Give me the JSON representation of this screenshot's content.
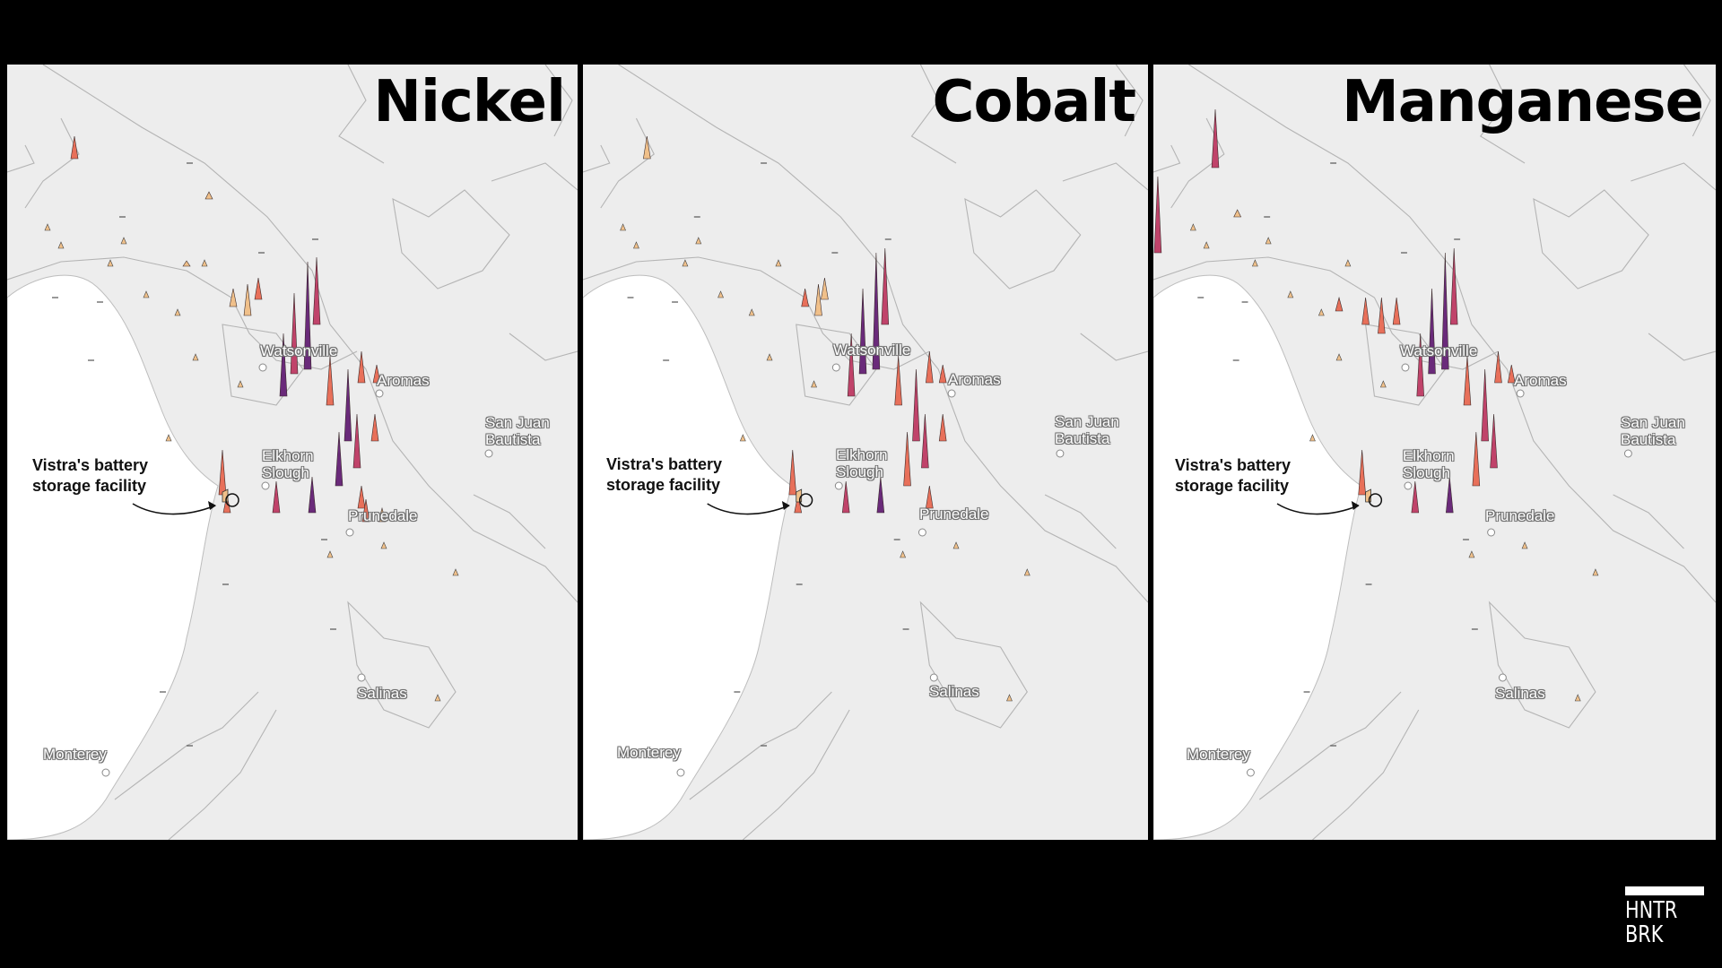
{
  "panels": [
    {
      "metal": "Nickel",
      "annotation": "Vistra's battery storage facility",
      "places": [
        "Watsonville",
        "Aromas",
        "San Juan Bautista",
        "Elkhorn Slough",
        "Prunedale",
        "Salinas",
        "Monterey"
      ]
    },
    {
      "metal": "Cobalt",
      "annotation": "Vistra's battery storage facility",
      "places": [
        "Watsonville",
        "Aromas",
        "San Juan Bautista",
        "Elkhorn Slough",
        "Prunedale",
        "Salinas",
        "Monterey"
      ]
    },
    {
      "metal": "Manganese",
      "annotation": "Vistra's battery storage facility",
      "places": [
        "Watsonville",
        "Aromas",
        "San Juan Bautista",
        "Elkhorn Slough",
        "Prunedale",
        "Salinas",
        "Monterey"
      ]
    }
  ],
  "logo": {
    "line1": "HNTR",
    "line2": "BRK"
  },
  "colors": {
    "background": "#000000",
    "land": "#ededed",
    "ocean": "#ffffff",
    "spike_low": "#f0c08a",
    "spike_mid": "#e8705a",
    "spike_high": "#c0436a",
    "spike_max": "#6a2a7a"
  }
}
